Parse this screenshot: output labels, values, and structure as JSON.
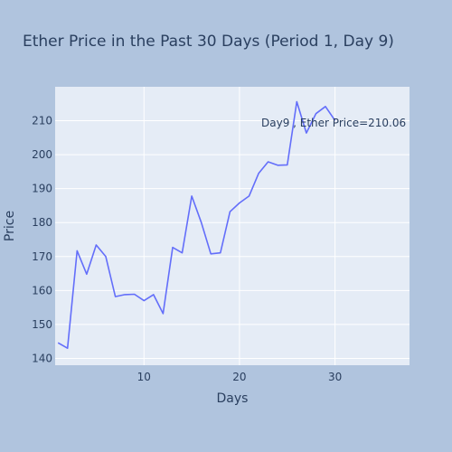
{
  "chart_data": {
    "type": "line",
    "title": "Ether Price in the Past 30 Days (Period 1, Day 9)",
    "xlabel": "Days",
    "ylabel": "Price",
    "xlim": [
      0.7,
      37.8
    ],
    "ylim": [
      138,
      220
    ],
    "x_ticks": [
      10,
      20,
      30
    ],
    "y_ticks": [
      140,
      150,
      160,
      170,
      180,
      190,
      200,
      210
    ],
    "grid": true,
    "annotation": "Day9 , Ether Price=210.06",
    "series": [
      {
        "color": "#636efa",
        "x": [
          1,
          2,
          3,
          4,
          5,
          6,
          7,
          8,
          9,
          10,
          11,
          12,
          13,
          14,
          15,
          16,
          17,
          18,
          19,
          20,
          21,
          22,
          23,
          24,
          25,
          26,
          27,
          28,
          29,
          30
        ],
        "y": [
          144.6,
          143.0,
          171.7,
          164.8,
          173.4,
          170.0,
          158.2,
          158.8,
          158.9,
          157.0,
          158.8,
          153.2,
          172.7,
          171.1,
          187.8,
          180.0,
          170.8,
          171.1,
          183.2,
          185.8,
          187.8,
          194.5,
          197.9,
          196.9,
          197.0,
          215.6,
          206.4,
          212.1,
          214.2,
          210.06
        ]
      }
    ]
  }
}
